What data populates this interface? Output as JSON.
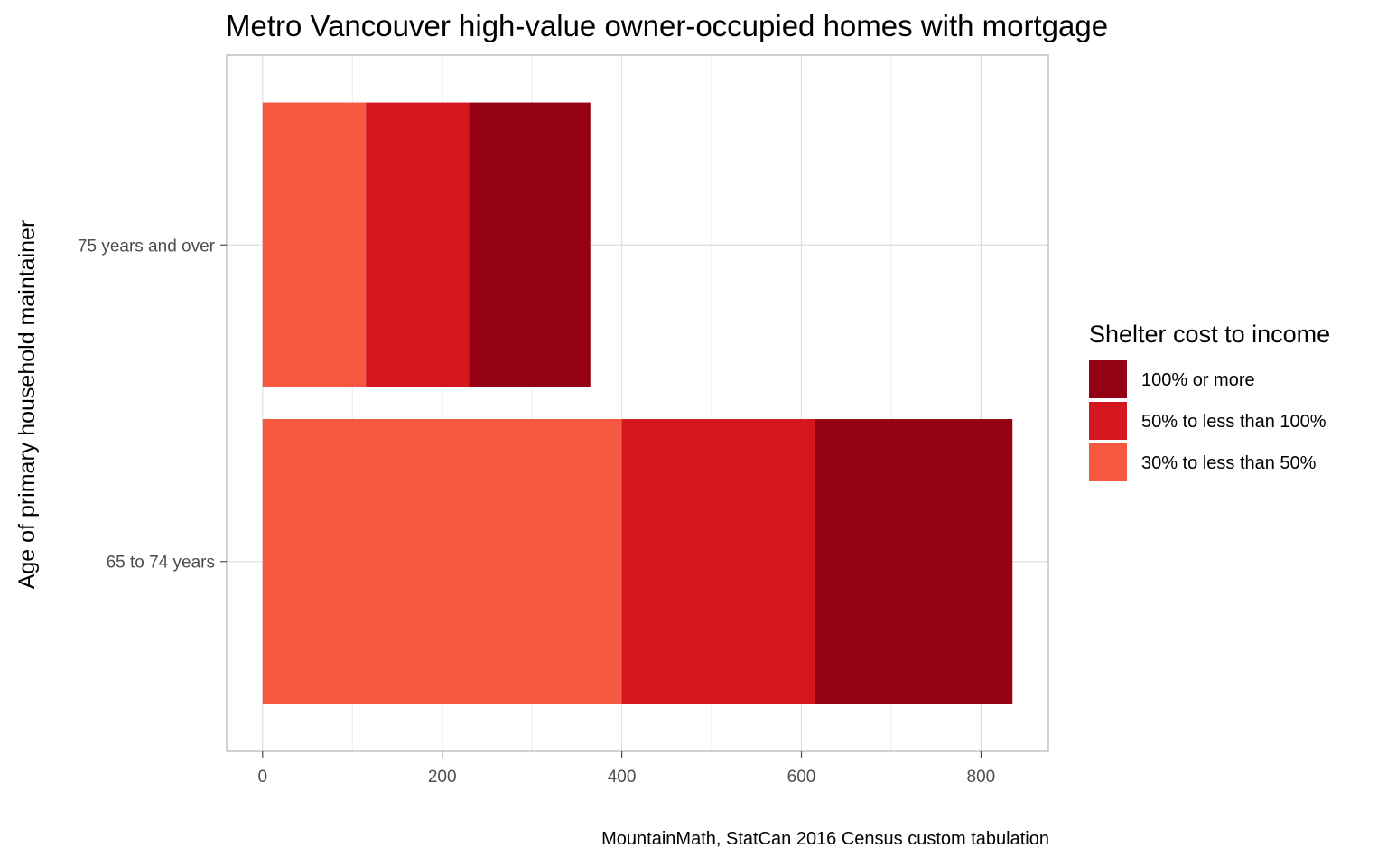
{
  "chart_data": {
    "type": "bar",
    "orientation": "horizontal",
    "stacked": true,
    "title": "Metro Vancouver high-value owner-occupied homes with mortgage",
    "xlabel": "",
    "ylabel": "Age of primary household maintainer",
    "categories": [
      "75 years and over",
      "65 to 74 years"
    ],
    "series": [
      {
        "name": "30% to less than 50%",
        "color": "#f65840",
        "values": [
          115,
          400
        ]
      },
      {
        "name": "50% to less than 100%",
        "color": "#d4171f",
        "values": [
          115,
          215
        ]
      },
      {
        "name": "100% or more",
        "color": "#940014",
        "values": [
          135,
          220
        ]
      }
    ],
    "xlim": [
      -40,
      875
    ],
    "xticks": [
      0,
      200,
      400,
      600,
      800
    ],
    "grid": true,
    "legend": {
      "title": "Shelter cost to income",
      "position": "right",
      "order": [
        "100% or more",
        "50% to less than 100%",
        "30% to less than 50%"
      ]
    },
    "caption": "MountainMath, StatCan 2016 Census custom tabulation"
  }
}
